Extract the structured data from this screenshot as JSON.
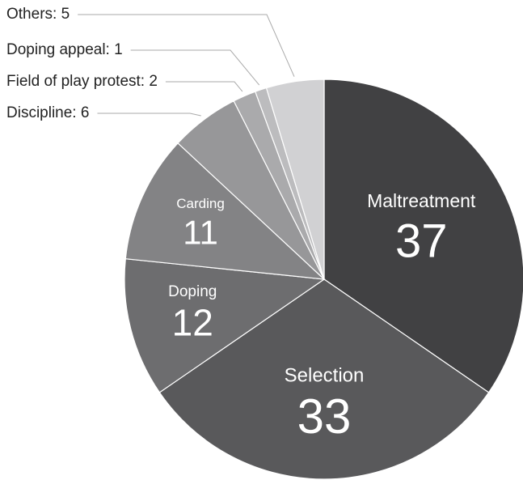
{
  "chart_data": {
    "type": "pie",
    "categories": [
      "Maltreatment",
      "Selection",
      "Doping",
      "Carding",
      "Discipline",
      "Field of play protest",
      "Doping appeal",
      "Others"
    ],
    "values": [
      37,
      33,
      12,
      11,
      6,
      2,
      1,
      5
    ],
    "value_labels": [
      null,
      null,
      null,
      null,
      "Discipline: 6",
      "Field of play protest: 2",
      "Doping appeal: 1",
      "Others: 5"
    ],
    "colors": [
      "#414143",
      "#59595b",
      "#6d6d6f",
      "#838385",
      "#979799",
      "#aaaaac",
      "#bcbcbe",
      "#d1d1d3"
    ]
  }
}
